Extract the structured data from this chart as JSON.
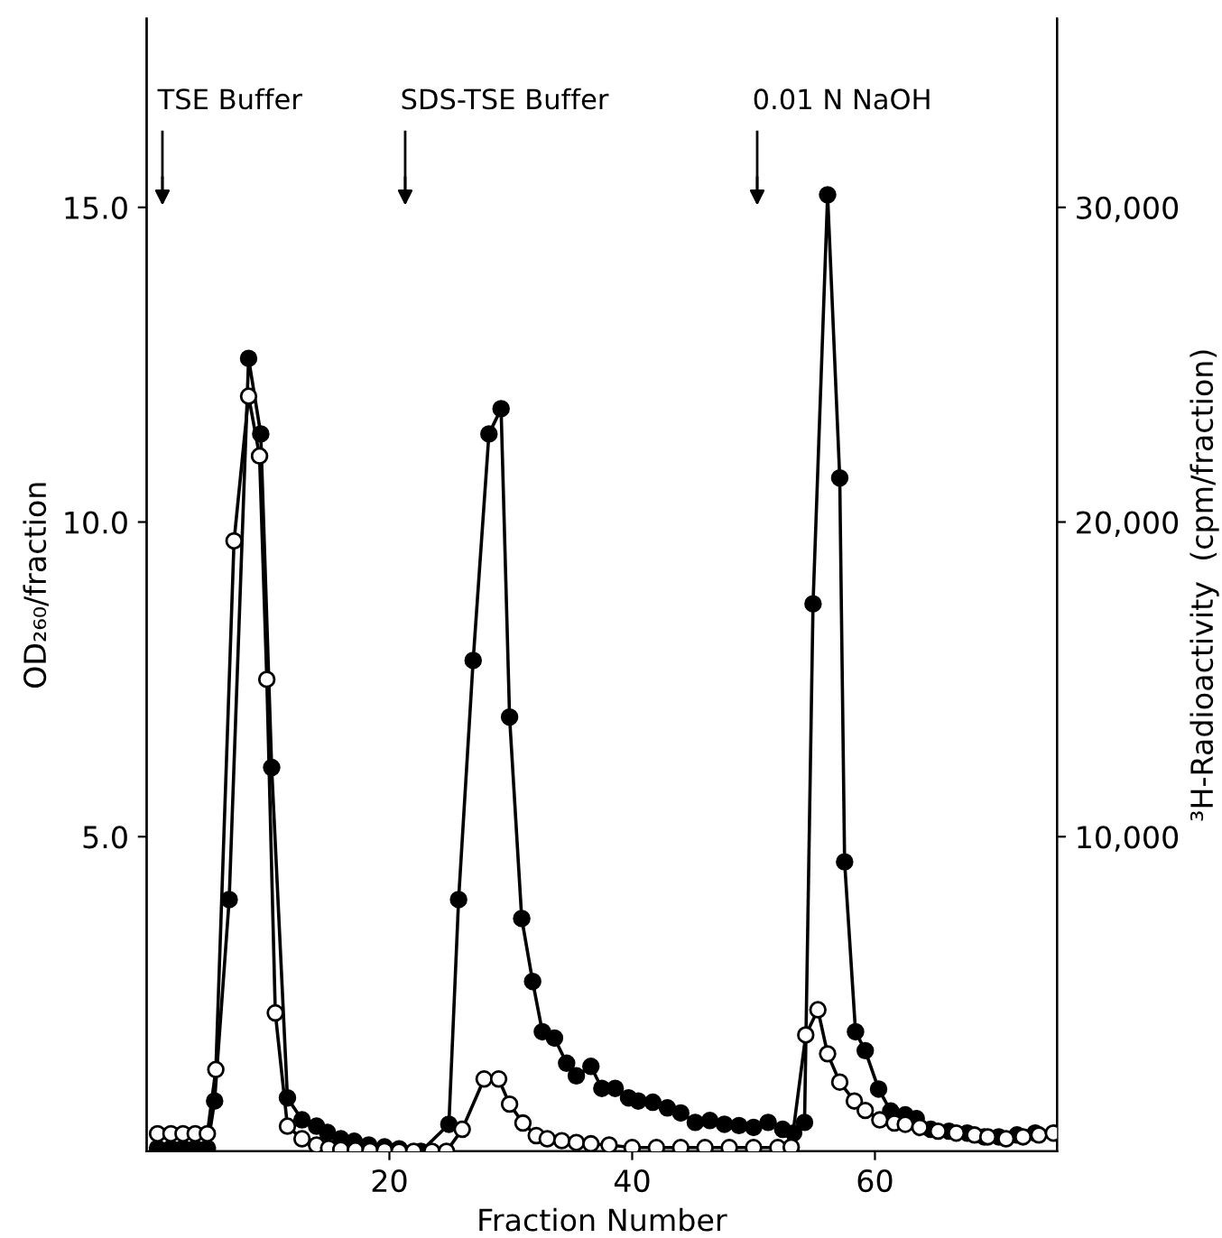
{
  "chart_data": {
    "type": "line",
    "xlabel": "Fraction Number",
    "ylabel": "OD₂₆₀/fraction",
    "y2label": "³H-Radioactivity  (cpm/fraction)",
    "xlim": [
      0,
      75
    ],
    "xticks": [
      20,
      40,
      60
    ],
    "ylim": [
      0,
      18
    ],
    "yticks": [
      {
        "value": 5,
        "label": "5.0"
      },
      {
        "value": 10,
        "label": "10.0"
      },
      {
        "value": 15,
        "label": "15.0"
      }
    ],
    "y2lim": [
      0,
      36000
    ],
    "y2ticks": [
      {
        "value": 10000,
        "label": "10,000"
      },
      {
        "value": 20000,
        "label": "20,000"
      },
      {
        "value": 30000,
        "label": "30,000"
      }
    ],
    "marker": "circle",
    "line_style": "solid",
    "grid": false,
    "legend": false,
    "ref_lines": [
      {
        "axis": "x",
        "value": 1.3,
        "label": "TSE Buffer"
      },
      {
        "axis": "x",
        "value": 21.3,
        "label": "SDS-TSE Buffer"
      },
      {
        "axis": "x",
        "value": 50.3,
        "label": "0.01 N NaOH"
      }
    ],
    "series": [
      {
        "color": "#000000",
        "x": [
          0.9,
          2,
          3,
          4,
          5,
          5.6,
          6.8,
          8.4,
          9.4,
          10.3,
          11.6,
          12.8,
          14,
          14.9,
          16,
          17.1,
          18.3,
          19.6,
          20.8,
          22.6,
          24.9,
          25.7,
          26.9,
          28.2,
          29.2,
          29.9,
          30.9,
          31.8,
          32.6,
          33.6,
          34.6,
          35.4,
          36.6,
          37.5,
          38.6,
          39.7,
          40.5,
          41.7,
          42.9,
          44,
          45.2,
          46.4,
          47.6,
          48.8,
          50,
          51.2,
          52.4,
          53.3,
          54.2,
          54.9,
          56.1,
          57.1,
          57.5,
          58.4,
          59.2,
          60.3,
          61.3,
          62.5,
          63.4,
          64.6,
          66.1,
          67.6,
          69,
          70.2,
          71.7,
          73.2
        ],
        "values": [
          0.05,
          0.05,
          0.05,
          0.05,
          0.05,
          0.8,
          4.0,
          12.6,
          11.4,
          6.1,
          0.85,
          0.5,
          0.4,
          0.3,
          0.2,
          0.16,
          0.1,
          0.07,
          0.04,
          0,
          0.43,
          4.0,
          7.8,
          11.4,
          11.8,
          6.9,
          3.7,
          2.7,
          1.9,
          1.8,
          1.4,
          1.2,
          1.35,
          1.0,
          1.0,
          0.85,
          0.8,
          0.78,
          0.69,
          0.61,
          0.46,
          0.49,
          0.43,
          0.41,
          0.38,
          0.46,
          0.35,
          0.29,
          0.46,
          8.7,
          15.2,
          10.7,
          4.6,
          1.9,
          1.6,
          0.99,
          0.64,
          0.58,
          0.52,
          0.35,
          0.32,
          0.29,
          0.23,
          0.23,
          0.26,
          0.29
        ]
      },
      {
        "color": "#ffffff",
        "axis": "y2",
        "x": [
          0.9,
          2,
          3,
          4,
          5,
          5.7,
          7.2,
          8.4,
          9.3,
          9.9,
          10.6,
          11.6,
          12.8,
          14,
          15,
          16,
          17.2,
          18.4,
          19.6,
          20.8,
          22,
          23.5,
          24.7,
          26,
          27.8,
          29,
          29.9,
          31,
          32.1,
          33,
          34.2,
          35.4,
          36.6,
          38.1,
          40,
          42,
          44,
          46,
          48,
          50,
          52,
          53.1,
          54.3,
          55.3,
          56.1,
          57.1,
          58.3,
          59.2,
          60.4,
          61.6,
          62.5,
          63.7,
          65.2,
          66.7,
          68.2,
          69.3,
          70.8,
          72.2,
          73.5,
          74.7
        ],
        "values": [
          560,
          560,
          560,
          560,
          560,
          2600,
          19400,
          24000,
          22100,
          15000,
          4400,
          800,
          400,
          200,
          100,
          60,
          40,
          20,
          20,
          0,
          0,
          0,
          0,
          700,
          2300,
          2300,
          1500,
          900,
          500,
          400,
          340,
          280,
          240,
          200,
          120,
          120,
          120,
          120,
          120,
          120,
          120,
          140,
          3700,
          4500,
          3100,
          2200,
          1600,
          1300,
          1000,
          900,
          860,
          760,
          640,
          580,
          520,
          460,
          400,
          460,
          520,
          580
        ]
      }
    ]
  }
}
